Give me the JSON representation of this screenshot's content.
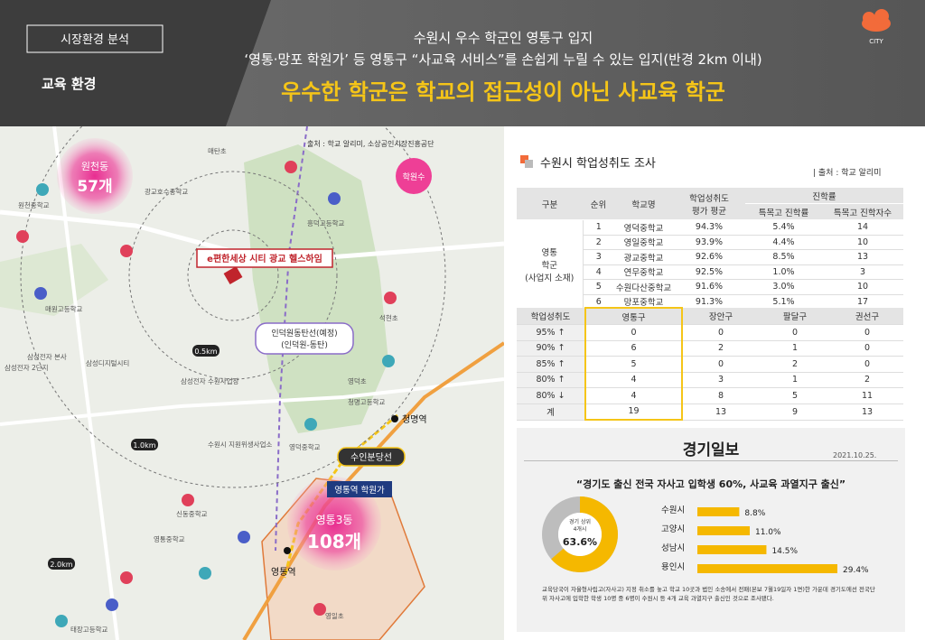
{
  "header": {
    "tag": "시장환경 분석",
    "section": "교육 환경",
    "lines": [
      "수원시 우수 학군인 영통구 입지",
      "‘영통·망포 학원가’ 등 영통구 “사교육 서비스”를 손쉽게 누릴 수 있는 입지(반경 2km 이내)"
    ],
    "headline": "우수한 학군은 학교의 접근성이 아닌 사교육 학군",
    "logo": "CITY"
  },
  "map": {
    "source": "출처 : 학교 알리미, 소상공인시장진흥공단",
    "bubbles": [
      {
        "area": "원천동",
        "count": "57개"
      },
      {
        "area": "영통3동",
        "count": "108개"
      }
    ],
    "legend": "학원수",
    "site": "e편한세상 시티 광교 헬스하임",
    "academy_street": "영통역 학원가",
    "subway": "수인분당선",
    "planned_line": [
      "인덕원동탄선(예정)",
      "(인덕원-동탄)"
    ],
    "stations": [
      "청명역",
      "영통역"
    ],
    "rings": [
      "0.5km",
      "1.0km",
      "2.0km"
    ],
    "labels": [
      "매원고등학교",
      "삼성전자 2단지",
      "삼성전자 본사",
      "삼성디지털시티",
      "흥덕고등학교",
      "청명고등학교",
      "영덕중학교",
      "영덕초",
      "태장고등학교",
      "광교호수중학교",
      "석현초",
      "매탄초",
      "신동중학교",
      "영일초",
      "원천중학교",
      "수원시 지원위생사업소",
      "영통중학교",
      "삼성전자 수원사업장"
    ]
  },
  "schools_table": {
    "title": "수원시 학업성취도 조사",
    "source": "| 출처 : 학교 알리미",
    "head": {
      "group": "구분",
      "rank": "순위",
      "school": "학교명",
      "score": [
        "학업성취도",
        "평가 평균"
      ],
      "advance": "진학률",
      "rate": "특목고 진학률",
      "count": "특목고 진학자수"
    },
    "group_label": [
      "영통",
      "학군",
      "(사업지 소재)"
    ],
    "rows": [
      [
        "1",
        "영덕중학교",
        "94.3%",
        "5.4%",
        "14"
      ],
      [
        "2",
        "영일중학교",
        "93.9%",
        "4.4%",
        "10"
      ],
      [
        "3",
        "광교중학교",
        "92.6%",
        "8.5%",
        "13"
      ],
      [
        "4",
        "연무중학교",
        "92.5%",
        "1.0%",
        "3"
      ],
      [
        "5",
        "수원다산중학교",
        "91.6%",
        "3.0%",
        "10"
      ],
      [
        "6",
        "망포중학교",
        "91.3%",
        "5.1%",
        "17"
      ]
    ]
  },
  "district_table": {
    "header": [
      "학업성취도",
      "영통구",
      "장안구",
      "팔달구",
      "권선구"
    ],
    "rows": [
      [
        "95% ↑",
        "0",
        "0",
        "0",
        "0"
      ],
      [
        "90% ↑",
        "6",
        "2",
        "1",
        "0"
      ],
      [
        "85% ↑",
        "5",
        "0",
        "2",
        "0"
      ],
      [
        "80% ↑",
        "4",
        "3",
        "1",
        "2"
      ],
      [
        "80% ↓",
        "4",
        "8",
        "5",
        "11"
      ],
      [
        "계",
        "19",
        "13",
        "9",
        "13"
      ]
    ]
  },
  "news": {
    "paper": "경기일보",
    "date": "2021.10.25.",
    "headline": "“경기도 출신 전국 자사고 입학생 60%, 사교육 과열지구 출신”",
    "donut": {
      "label": [
        "경기 상위",
        "4개시"
      ],
      "value": 63.6,
      "value_label": "63.6%"
    },
    "chart": {
      "type": "bar",
      "categories": [
        "수원시",
        "고양시",
        "성남시",
        "용인시"
      ],
      "values": [
        8.8,
        11.0,
        14.5,
        29.4
      ],
      "value_labels": [
        "8.8%",
        "11.0%",
        "14.5%",
        "29.4%"
      ],
      "color": "#f5b800"
    },
    "footnote": "교육당국이 자율형사립고(자사고) 지정 취소를 놓고 학교 10곳과 법인 소송에서 전패(본보 7월19일자 1면)한 가운데 경기도에선 전국단위 자사고에 입학한 학생 10명 중 6명이 수원시 등 4개 교육 과열지구 출신인 것으로 조사됐다."
  }
}
